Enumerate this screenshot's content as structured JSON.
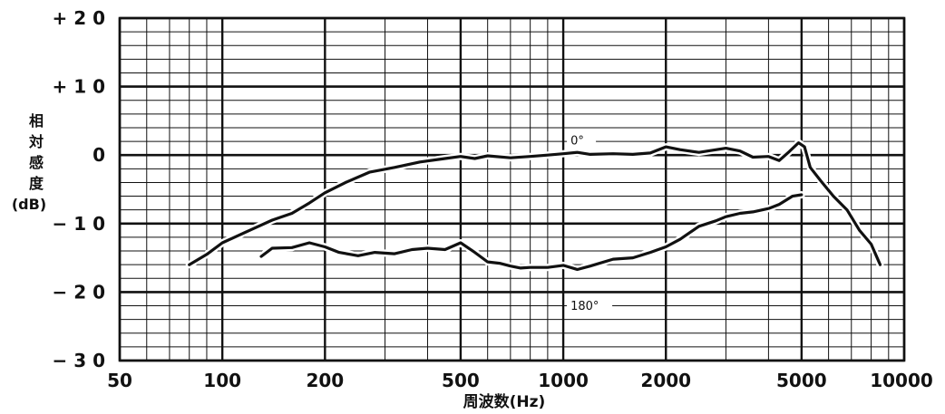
{
  "chart_data": {
    "type": "line",
    "xlabel": "周波数(Hz)",
    "ylabel_lines": [
      "相",
      "対",
      "感",
      "度",
      "(dB)"
    ],
    "x_scale": "log",
    "xlim": [
      50,
      10000
    ],
    "ylim": [
      -30,
      20
    ],
    "x_ticks": [
      {
        "value": 50,
        "label": "50"
      },
      {
        "value": 100,
        "label": "100"
      },
      {
        "value": 200,
        "label": "200"
      },
      {
        "value": 500,
        "label": "500"
      },
      {
        "value": 1000,
        "label": "1000"
      },
      {
        "value": 2000,
        "label": "2000"
      },
      {
        "value": 5000,
        "label": "5000"
      },
      {
        "value": 10000,
        "label": "10000"
      }
    ],
    "y_ticks": [
      {
        "value": 20,
        "label": "+ 2 0"
      },
      {
        "value": 10,
        "label": "+ 1 0"
      },
      {
        "value": 0,
        "label": "0"
      },
      {
        "value": -10,
        "label": "− 1 0"
      },
      {
        "value": -20,
        "label": "− 2 0"
      },
      {
        "value": -30,
        "label": "− 3 0"
      }
    ],
    "grid": true,
    "series": [
      {
        "name": "0°",
        "label_at": {
          "x": 1000,
          "y": 1.8
        },
        "points": [
          [
            80,
            -16
          ],
          [
            90,
            -14.5
          ],
          [
            100,
            -12.8
          ],
          [
            120,
            -11
          ],
          [
            140,
            -9.5
          ],
          [
            160,
            -8.5
          ],
          [
            180,
            -7
          ],
          [
            200,
            -5.5
          ],
          [
            230,
            -4
          ],
          [
            270,
            -2.5
          ],
          [
            320,
            -1.8
          ],
          [
            380,
            -1
          ],
          [
            450,
            -0.5
          ],
          [
            500,
            -0.2
          ],
          [
            550,
            -0.5
          ],
          [
            600,
            -0.1
          ],
          [
            700,
            -0.4
          ],
          [
            800,
            -0.2
          ],
          [
            900,
            0
          ],
          [
            1000,
            0.2
          ],
          [
            1100,
            0.4
          ],
          [
            1200,
            0.1
          ],
          [
            1400,
            0.2
          ],
          [
            1600,
            0.1
          ],
          [
            1800,
            0.3
          ],
          [
            2000,
            1.2
          ],
          [
            2200,
            0.8
          ],
          [
            2500,
            0.4
          ],
          [
            3000,
            1
          ],
          [
            3300,
            0.6
          ],
          [
            3600,
            -0.3
          ],
          [
            4000,
            -0.2
          ],
          [
            4300,
            -0.8
          ],
          [
            4600,
            0.5
          ],
          [
            4900,
            1.8
          ],
          [
            5100,
            1.2
          ],
          [
            5300,
            -1.8
          ],
          [
            5700,
            -3.8
          ],
          [
            6200,
            -6
          ],
          [
            6800,
            -8
          ],
          [
            7400,
            -11
          ],
          [
            8000,
            -13
          ],
          [
            8500,
            -16
          ]
        ]
      },
      {
        "name": "180°",
        "label_at": {
          "x": 1000,
          "y": -22.3
        },
        "points": [
          [
            130,
            -14.8
          ],
          [
            140,
            -13.6
          ],
          [
            160,
            -13.5
          ],
          [
            180,
            -12.8
          ],
          [
            200,
            -13.4
          ],
          [
            220,
            -14.2
          ],
          [
            250,
            -14.7
          ],
          [
            280,
            -14.2
          ],
          [
            320,
            -14.4
          ],
          [
            360,
            -13.8
          ],
          [
            400,
            -13.6
          ],
          [
            450,
            -13.8
          ],
          [
            500,
            -12.8
          ],
          [
            550,
            -14.2
          ],
          [
            600,
            -15.6
          ],
          [
            650,
            -15.8
          ],
          [
            700,
            -16.2
          ],
          [
            750,
            -16.5
          ],
          [
            800,
            -16.4
          ],
          [
            900,
            -16.4
          ],
          [
            1000,
            -16.1
          ],
          [
            1100,
            -16.7
          ],
          [
            1200,
            -16.2
          ],
          [
            1400,
            -15.2
          ],
          [
            1600,
            -15
          ],
          [
            1800,
            -14.2
          ],
          [
            2000,
            -13.4
          ],
          [
            2200,
            -12.3
          ],
          [
            2500,
            -10.4
          ],
          [
            2800,
            -9.6
          ],
          [
            3000,
            -9
          ],
          [
            3300,
            -8.5
          ],
          [
            3600,
            -8.3
          ],
          [
            4000,
            -7.8
          ],
          [
            4300,
            -7.2
          ],
          [
            4700,
            -6
          ],
          [
            5000,
            -5.8
          ]
        ]
      }
    ],
    "colors": {
      "line": "#111111",
      "grid": "#111111",
      "background": "#ffffff"
    }
  }
}
